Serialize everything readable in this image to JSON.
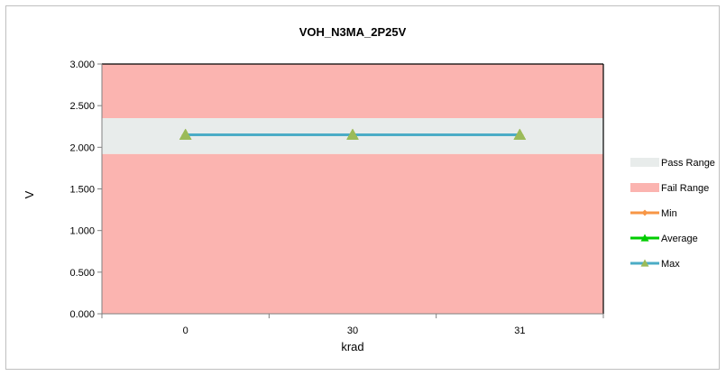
{
  "chart_data": {
    "type": "line",
    "title": "VOH_N3MA_2P25V",
    "xlabel": "krad",
    "ylabel": "V",
    "categories": [
      "0",
      "30",
      "31"
    ],
    "ylim": [
      0,
      3
    ],
    "yticks": [
      "0.000",
      "0.500",
      "1.000",
      "1.500",
      "2.000",
      "2.500",
      "3.000"
    ],
    "pass_range": [
      1.92,
      2.35
    ],
    "fail_range": [
      [
        0,
        1.92
      ],
      [
        2.35,
        3.0
      ]
    ],
    "series": [
      {
        "name": "Min",
        "values": [
          2.15,
          2.15,
          2.15
        ],
        "color": "#f79646",
        "marker": "diamond"
      },
      {
        "name": "Average",
        "values": [
          2.15,
          2.15,
          2.15
        ],
        "color": "#00cc00",
        "marker": "triangle"
      },
      {
        "name": "Max",
        "values": [
          2.15,
          2.15,
          2.15
        ],
        "color": "#4bacc6",
        "marker": "triangle"
      }
    ],
    "legend": {
      "position": "right",
      "entries": [
        {
          "name": "Pass Range",
          "kind": "band",
          "color": "#e8eceb"
        },
        {
          "name": "Fail Range",
          "kind": "band",
          "color": "#fbb4b0"
        },
        {
          "name": "Min",
          "kind": "line",
          "color": "#f79646"
        },
        {
          "name": "Average",
          "kind": "line",
          "color": "#00cc00"
        },
        {
          "name": "Max",
          "kind": "line",
          "color": "#4bacc6"
        }
      ]
    },
    "colors": {
      "fail": "#fbb4b0",
      "pass": "#e8eceb",
      "marker_fill": "#9bbb59"
    },
    "grid": false
  }
}
